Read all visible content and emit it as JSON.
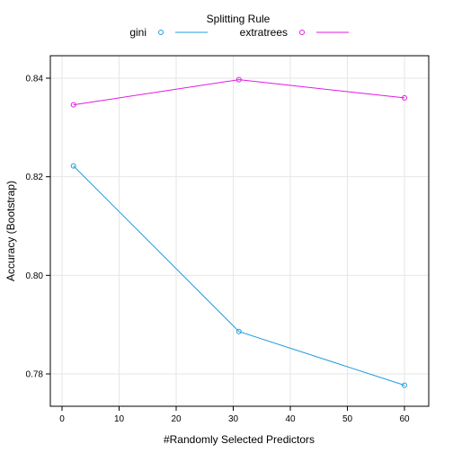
{
  "chart_data": {
    "type": "line",
    "legend": {
      "title": "Splitting Rule",
      "position": "top",
      "entries": [
        {
          "name": "gini",
          "color": "#1f9bdf"
        },
        {
          "name": "extratrees",
          "color": "#e219e2"
        }
      ]
    },
    "xlabel": "#Randomly Selected Predictors",
    "ylabel": "Accuracy (Bootstrap)",
    "xlim": [
      0,
      60
    ],
    "ylim": [
      0.78,
      0.84
    ],
    "x_ticks": [
      0,
      10,
      20,
      30,
      40,
      50,
      60
    ],
    "y_ticks": [
      0.78,
      0.8,
      0.82,
      0.84
    ],
    "grid": true,
    "series": [
      {
        "name": "gini",
        "color": "#1f9bdf",
        "x": [
          2,
          31,
          60
        ],
        "y": [
          0.8222,
          0.7886,
          0.7777
        ]
      },
      {
        "name": "extratrees",
        "color": "#e219e2",
        "x": [
          2,
          31,
          60
        ],
        "y": [
          0.8346,
          0.8397,
          0.836
        ]
      }
    ]
  }
}
